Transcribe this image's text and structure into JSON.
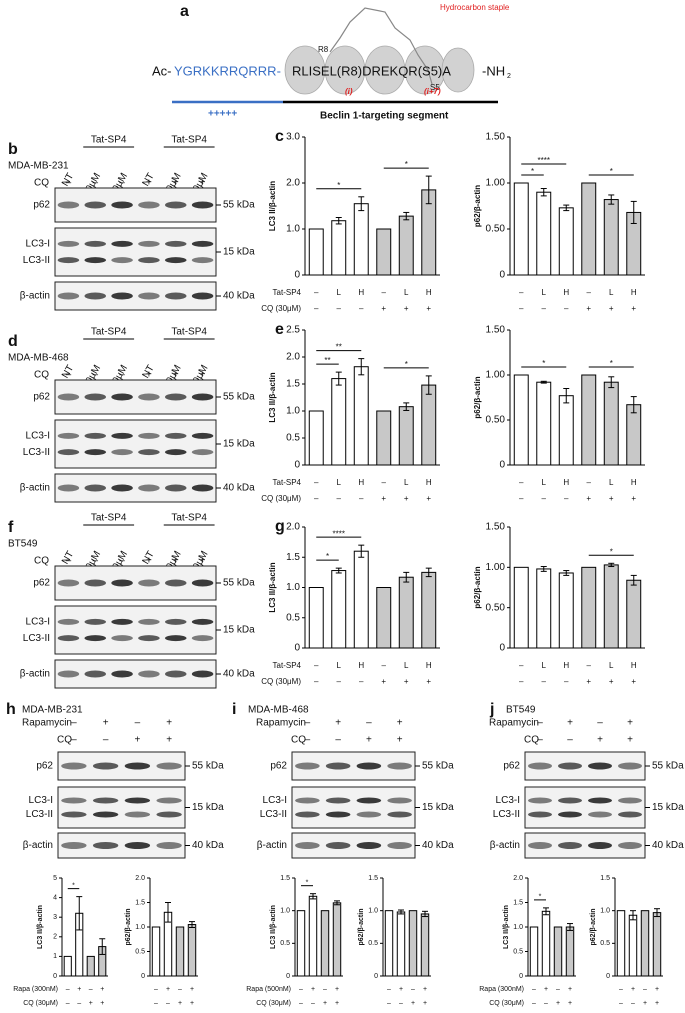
{
  "panel_a": {
    "letter": "a",
    "staple": "Hydrocarbon staple",
    "r8": "R8",
    "s5": "S5",
    "ac": "Ac-",
    "tat": "YGRKKRRQRRR-",
    "seq": "RLISEL(R8)DREKQR(S5)A",
    "nh": "-NH",
    "nh_sub": "2",
    "i": "(i)",
    "i7": "(i+7)",
    "plus": "+++++",
    "segment": "Beclin 1-targeting segment"
  },
  "blots": [
    {
      "letter": "b",
      "cell_line": "MDA-MB-231",
      "groups": [
        {
          "label": "Tat-SP4",
          "lanes": [
            1,
            2
          ]
        },
        {
          "label": "Tat-SP4",
          "lanes": [
            4,
            5
          ]
        }
      ],
      "lanes": [
        "NT",
        "10μM",
        "20μM",
        "NT",
        "10μM",
        "20μM"
      ],
      "treatments": [
        {
          "name": "CQ",
          "marks": [
            "–",
            "–",
            "–",
            "+",
            "+",
            "+"
          ]
        }
      ],
      "rows": [
        {
          "labels": [
            "p62"
          ],
          "kda": "55 kDa"
        },
        {
          "labels": [
            "LC3-I",
            "LC3-II"
          ],
          "kda": "15 kDa"
        },
        {
          "labels": [
            "β-actin"
          ],
          "kda": "40 kDa"
        }
      ]
    },
    {
      "letter": "d",
      "cell_line": "MDA-MB-468",
      "groups": [
        {
          "label": "Tat-SP4",
          "lanes": [
            1,
            2
          ]
        },
        {
          "label": "Tat-SP4",
          "lanes": [
            4,
            5
          ]
        }
      ],
      "lanes": [
        "NT",
        "10μM",
        "20μM",
        "NT",
        "10μM",
        "20μM"
      ],
      "treatments": [
        {
          "name": "CQ",
          "marks": [
            "–",
            "–",
            "–",
            "+",
            "+",
            "+"
          ]
        }
      ],
      "rows": [
        {
          "labels": [
            "p62"
          ],
          "kda": "55 kDa"
        },
        {
          "labels": [
            "LC3-I",
            "LC3-II"
          ],
          "kda": "15 kDa"
        },
        {
          "labels": [
            "β-actin"
          ],
          "kda": "40 kDa"
        }
      ]
    },
    {
      "letter": "f",
      "cell_line": "BT549",
      "groups": [
        {
          "label": "Tat-SP4",
          "lanes": [
            1,
            2
          ]
        },
        {
          "label": "Tat-SP4",
          "lanes": [
            4,
            5
          ]
        }
      ],
      "lanes": [
        "NT",
        "10μM",
        "20μM",
        "NT",
        "10μM",
        "20μM"
      ],
      "treatments": [
        {
          "name": "CQ",
          "marks": [
            "–",
            "–",
            "–",
            "+",
            "+",
            "+"
          ]
        }
      ],
      "rows": [
        {
          "labels": [
            "p62"
          ],
          "kda": "55 kDa"
        },
        {
          "labels": [
            "LC3-I",
            "LC3-II"
          ],
          "kda": "15 kDa"
        },
        {
          "labels": [
            "β-actin"
          ],
          "kda": "40 kDa"
        }
      ]
    },
    {
      "letter": "h",
      "cell_line": "MDA-MB-231",
      "treatments": [
        {
          "name": "Rapamycin",
          "marks": [
            "–",
            "+",
            "–",
            "+"
          ]
        },
        {
          "name": "CQ",
          "marks": [
            "–",
            "–",
            "+",
            "+"
          ]
        }
      ],
      "rows": [
        {
          "labels": [
            "p62"
          ],
          "kda": "55 kDa"
        },
        {
          "labels": [
            "LC3-I",
            "LC3-II"
          ],
          "kda": "15 kDa"
        },
        {
          "labels": [
            "β-actin"
          ],
          "kda": "40 kDa"
        }
      ]
    },
    {
      "letter": "i",
      "cell_line": "MDA-MB-468",
      "treatments": [
        {
          "name": "Rapamycin",
          "marks": [
            "–",
            "+",
            "–",
            "+"
          ]
        },
        {
          "name": "CQ",
          "marks": [
            "–",
            "–",
            "+",
            "+"
          ]
        }
      ],
      "rows": [
        {
          "labels": [
            "p62"
          ],
          "kda": "55 kDa"
        },
        {
          "labels": [
            "LC3-I",
            "LC3-II"
          ],
          "kda": "15 kDa"
        },
        {
          "labels": [
            "β-actin"
          ],
          "kda": "40 kDa"
        }
      ]
    },
    {
      "letter": "j",
      "cell_line": "BT549",
      "treatments": [
        {
          "name": "Rapamycin",
          "marks": [
            "–",
            "+",
            "–",
            "+"
          ]
        },
        {
          "name": "CQ",
          "marks": [
            "–",
            "–",
            "+",
            "+"
          ]
        }
      ],
      "rows": [
        {
          "labels": [
            "p62"
          ],
          "kda": "55 kDa"
        },
        {
          "labels": [
            "LC3-I",
            "LC3-II"
          ],
          "kda": "15 kDa"
        },
        {
          "labels": [
            "β-actin"
          ],
          "kda": "40 kDa"
        }
      ]
    }
  ],
  "chart_data": [
    {
      "type": "bar",
      "letter": "c",
      "ylabel": "LC3 II/β-actin",
      "ylim": [
        0,
        3
      ],
      "yticks": [
        0,
        {
          "value": 1,
          "label": "1.0"
        },
        {
          "value": 2,
          "label": "2.0"
        },
        {
          "value": 3,
          "label": "3.0"
        }
      ],
      "values": [
        1,
        1.18,
        1.55,
        1,
        1.28,
        1.85
      ],
      "errors": [
        0,
        0.07,
        0.15,
        0,
        0.08,
        0.3
      ],
      "colors": [
        "#ffffff",
        "#ffffff",
        "#ffffff",
        "#c8c8c8",
        "#c8c8c8",
        "#c8c8c8"
      ],
      "xrows": [
        {
          "name": "Tat-SP4",
          "marks": [
            "–",
            "L",
            "H",
            "–",
            "L",
            "H"
          ]
        },
        {
          "name": "CQ (30μM)",
          "marks": [
            "–",
            "–",
            "–",
            "+",
            "+",
            "+"
          ]
        }
      ],
      "annotations": [
        {
          "text": "*",
          "bars": [
            0,
            2
          ]
        },
        {
          "text": "*",
          "bars": [
            3,
            5
          ]
        }
      ]
    },
    {
      "type": "bar",
      "ylabel": "p62/β-actin",
      "ylim": [
        0,
        1.5
      ],
      "yticks": [
        0,
        {
          "value": 0.5,
          "label": "0.50"
        },
        {
          "value": 1,
          "label": "1.00"
        },
        {
          "value": 1.5,
          "label": "1.50"
        }
      ],
      "values": [
        1,
        0.9,
        0.73,
        1,
        0.82,
        0.68
      ],
      "errors": [
        0,
        0.04,
        0.03,
        0,
        0.05,
        0.12
      ],
      "colors": [
        "#ffffff",
        "#ffffff",
        "#ffffff",
        "#c8c8c8",
        "#c8c8c8",
        "#c8c8c8"
      ],
      "xrows": [
        {
          "marks": [
            "–",
            "L",
            "H",
            "–",
            "L",
            "H"
          ]
        },
        {
          "marks": [
            "–",
            "–",
            "–",
            "+",
            "+",
            "+"
          ]
        }
      ],
      "annotations": [
        {
          "text": "*",
          "bars": [
            0,
            1
          ]
        },
        {
          "text": "****",
          "bars": [
            0,
            2
          ]
        },
        {
          "text": "*",
          "bars": [
            3,
            5
          ]
        }
      ]
    },
    {
      "type": "bar",
      "letter": "e",
      "ylabel": "LC3 II/β-actin",
      "ylim": [
        0,
        2.5
      ],
      "yticks": [
        0,
        0.5,
        {
          "value": 1,
          "label": "1.0"
        },
        1.5,
        {
          "value": 2,
          "label": "2.0"
        },
        2.5
      ],
      "values": [
        1,
        1.6,
        1.82,
        1,
        1.08,
        1.48
      ],
      "errors": [
        0,
        0.12,
        0.15,
        0,
        0.07,
        0.17
      ],
      "colors": [
        "#ffffff",
        "#ffffff",
        "#ffffff",
        "#c8c8c8",
        "#c8c8c8",
        "#c8c8c8"
      ],
      "xrows": [
        {
          "name": "Tat-SP4",
          "marks": [
            "–",
            "L",
            "H",
            "–",
            "L",
            "H"
          ]
        },
        {
          "name": "CQ (30μM)",
          "marks": [
            "–",
            "–",
            "–",
            "+",
            "+",
            "+"
          ]
        }
      ],
      "annotations": [
        {
          "text": "**",
          "bars": [
            0,
            1
          ]
        },
        {
          "text": "**",
          "bars": [
            0,
            2
          ]
        },
        {
          "text": "*",
          "bars": [
            3,
            5
          ]
        }
      ]
    },
    {
      "type": "bar",
      "ylabel": "p62/β-actin",
      "ylim": [
        0,
        1.5
      ],
      "yticks": [
        0,
        {
          "value": 0.5,
          "label": "0.50"
        },
        {
          "value": 1,
          "label": "1.00"
        },
        {
          "value": 1.5,
          "label": "1.50"
        }
      ],
      "values": [
        1,
        0.92,
        0.77,
        1,
        0.92,
        0.67
      ],
      "errors": [
        0,
        0.01,
        0.08,
        0,
        0.06,
        0.09
      ],
      "colors": [
        "#ffffff",
        "#ffffff",
        "#ffffff",
        "#c8c8c8",
        "#c8c8c8",
        "#c8c8c8"
      ],
      "xrows": [
        {
          "marks": [
            "–",
            "L",
            "H",
            "–",
            "L",
            "H"
          ]
        },
        {
          "marks": [
            "–",
            "–",
            "–",
            "+",
            "+",
            "+"
          ]
        }
      ],
      "annotations": [
        {
          "text": "*",
          "bars": [
            0,
            2
          ]
        },
        {
          "text": "*",
          "bars": [
            3,
            5
          ]
        }
      ]
    },
    {
      "type": "bar",
      "letter": "g",
      "ylabel": "LC3 II/β-actin",
      "ylim": [
        0,
        2
      ],
      "yticks": [
        0,
        0.5,
        {
          "value": 1,
          "label": "1.0"
        },
        1.5,
        {
          "value": 2,
          "label": "2.0"
        }
      ],
      "values": [
        1,
        1.28,
        1.6,
        1,
        1.17,
        1.25
      ],
      "errors": [
        0,
        0.04,
        0.1,
        0,
        0.08,
        0.07
      ],
      "colors": [
        "#ffffff",
        "#ffffff",
        "#ffffff",
        "#c8c8c8",
        "#c8c8c8",
        "#c8c8c8"
      ],
      "xrows": [
        {
          "name": "Tat-SP4",
          "marks": [
            "–",
            "L",
            "H",
            "–",
            "L",
            "H"
          ]
        },
        {
          "name": "CQ (30μM)",
          "marks": [
            "–",
            "–",
            "–",
            "+",
            "+",
            "+"
          ]
        }
      ],
      "annotations": [
        {
          "text": "*",
          "bars": [
            0,
            1
          ]
        },
        {
          "text": "****",
          "bars": [
            0,
            2
          ]
        }
      ]
    },
    {
      "type": "bar",
      "ylabel": "p62/β-actin",
      "ylim": [
        0,
        1.5
      ],
      "yticks": [
        0,
        {
          "value": 0.5,
          "label": "0.50"
        },
        {
          "value": 1,
          "label": "1.00"
        },
        {
          "value": 1.5,
          "label": "1.50"
        }
      ],
      "values": [
        1,
        0.98,
        0.93,
        1,
        1.03,
        0.84
      ],
      "errors": [
        0,
        0.03,
        0.03,
        0,
        0.02,
        0.06
      ],
      "colors": [
        "#ffffff",
        "#ffffff",
        "#ffffff",
        "#c8c8c8",
        "#c8c8c8",
        "#c8c8c8"
      ],
      "xrows": [
        {
          "marks": [
            "–",
            "L",
            "H",
            "–",
            "L",
            "H"
          ]
        },
        {
          "marks": [
            "–",
            "–",
            "–",
            "+",
            "+",
            "+"
          ]
        }
      ],
      "annotations": [
        {
          "text": "*",
          "bars": [
            3,
            5
          ]
        }
      ]
    },
    {
      "type": "bar",
      "ylabel": "LC3 II/β-actin",
      "ylim": [
        0,
        5
      ],
      "yticks": [
        0,
        1,
        2,
        3,
        4,
        5
      ],
      "values": [
        1,
        3.2,
        1,
        1.5
      ],
      "errors": [
        0,
        0.85,
        0,
        0.4
      ],
      "colors": [
        "#ffffff",
        "#ffffff",
        "#c8c8c8",
        "#c8c8c8"
      ],
      "xrows": [
        {
          "name": "Rapa (300nM)",
          "marks": [
            "–",
            "+",
            "–",
            "+"
          ]
        },
        {
          "name": "CQ (30μM)",
          "marks": [
            "–",
            "–",
            "+",
            "+"
          ]
        }
      ],
      "annotations": [
        {
          "text": "*",
          "bars": [
            0,
            1
          ]
        }
      ]
    },
    {
      "type": "bar",
      "ylabel": "p62/β-actin",
      "ylim": [
        0,
        2
      ],
      "yticks": [
        0,
        0.5,
        {
          "value": 1,
          "label": "1.0"
        },
        1.5,
        {
          "value": 2,
          "label": "2.0"
        }
      ],
      "values": [
        1,
        1.3,
        1,
        1.05
      ],
      "errors": [
        0,
        0.2,
        0,
        0.06
      ],
      "colors": [
        "#ffffff",
        "#ffffff",
        "#c8c8c8",
        "#c8c8c8"
      ],
      "xrows": [
        {
          "marks": [
            "–",
            "+",
            "–",
            "+"
          ]
        },
        {
          "marks": [
            "–",
            "–",
            "+",
            "+"
          ]
        }
      ],
      "annotations": []
    },
    {
      "type": "bar",
      "ylabel": "LC3 II/β-actin",
      "ylim": [
        0,
        1.5
      ],
      "yticks": [
        0,
        0.5,
        {
          "value": 1,
          "label": "1.0"
        },
        1.5
      ],
      "values": [
        1,
        1.22,
        1,
        1.12
      ],
      "errors": [
        0,
        0.04,
        0,
        0.03
      ],
      "colors": [
        "#ffffff",
        "#ffffff",
        "#c8c8c8",
        "#c8c8c8"
      ],
      "xrows": [
        {
          "name": "Rapa (500nM)",
          "marks": [
            "–",
            "+",
            "–",
            "+"
          ]
        },
        {
          "name": "CQ (30μM)",
          "marks": [
            "–",
            "–",
            "+",
            "+"
          ]
        }
      ],
      "annotations": [
        {
          "text": "*",
          "bars": [
            0,
            1
          ]
        }
      ]
    },
    {
      "type": "bar",
      "ylabel": "p62/β-actin",
      "ylim": [
        0,
        1.5
      ],
      "yticks": [
        0,
        0.5,
        {
          "value": 1,
          "label": "1.0"
        },
        1.5
      ],
      "values": [
        1,
        0.98,
        1,
        0.95
      ],
      "errors": [
        0,
        0.03,
        0,
        0.04
      ],
      "colors": [
        "#ffffff",
        "#ffffff",
        "#c8c8c8",
        "#c8c8c8"
      ],
      "xrows": [
        {
          "marks": [
            "–",
            "+",
            "–",
            "+"
          ]
        },
        {
          "marks": [
            "–",
            "–",
            "+",
            "+"
          ]
        }
      ],
      "annotations": []
    },
    {
      "type": "bar",
      "ylabel": "LC3 II/β-actin",
      "ylim": [
        0,
        2
      ],
      "yticks": [
        0,
        0.5,
        {
          "value": 1,
          "label": "1.0"
        },
        1.5,
        {
          "value": 2,
          "label": "2.0"
        }
      ],
      "values": [
        1,
        1.32,
        1,
        1.0
      ],
      "errors": [
        0,
        0.07,
        0,
        0.07
      ],
      "colors": [
        "#ffffff",
        "#ffffff",
        "#c8c8c8",
        "#c8c8c8"
      ],
      "xrows": [
        {
          "name": "Rapa (300nM)",
          "marks": [
            "–",
            "+",
            "–",
            "+"
          ]
        },
        {
          "name": "CQ (30μM)",
          "marks": [
            "–",
            "–",
            "+",
            "+"
          ]
        }
      ],
      "annotations": [
        {
          "text": "*",
          "bars": [
            0,
            1
          ]
        }
      ]
    },
    {
      "type": "bar",
      "ylabel": "p62/β-actin",
      "ylim": [
        0,
        1.5
      ],
      "yticks": [
        0,
        0.5,
        {
          "value": 1,
          "label": "1.0"
        },
        1.5
      ],
      "values": [
        1,
        0.93,
        1,
        0.97
      ],
      "errors": [
        0,
        0.07,
        0,
        0.06
      ],
      "colors": [
        "#ffffff",
        "#ffffff",
        "#c8c8c8",
        "#c8c8c8"
      ],
      "xrows": [
        {
          "marks": [
            "–",
            "+",
            "–",
            "+"
          ]
        },
        {
          "marks": [
            "–",
            "–",
            "+",
            "+"
          ]
        }
      ],
      "annotations": []
    }
  ]
}
